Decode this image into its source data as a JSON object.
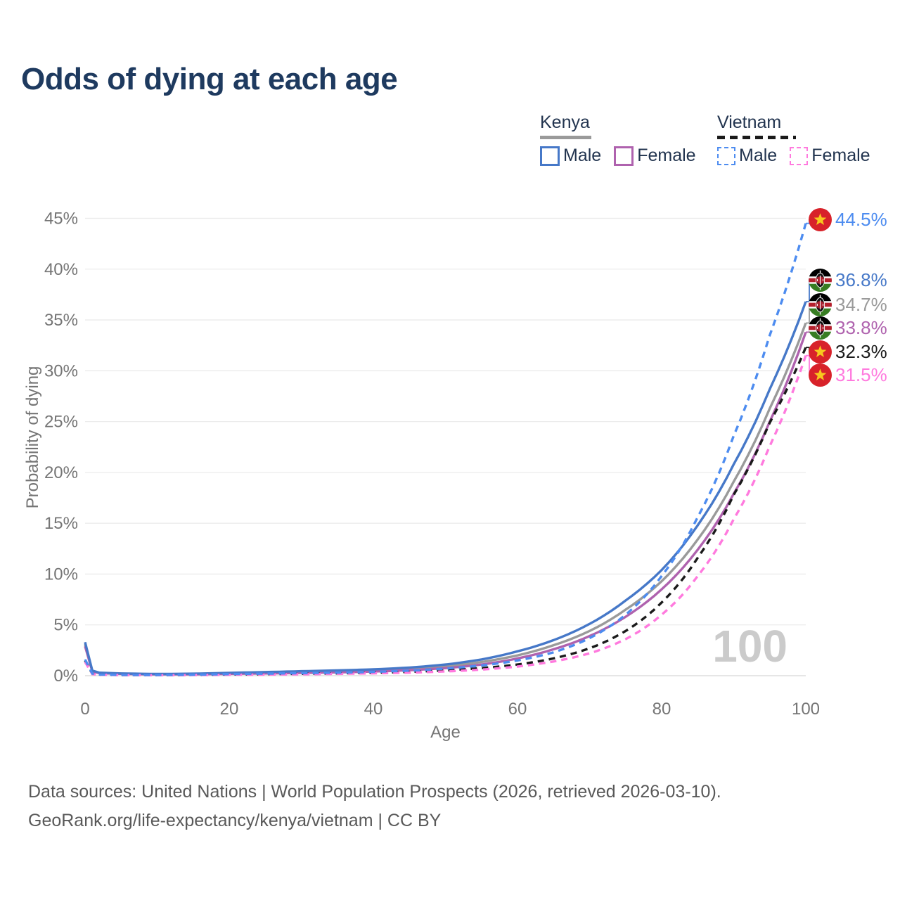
{
  "title": "Odds of dying at each age",
  "legend": {
    "groups": [
      {
        "country": "Kenya",
        "style": "solid",
        "items": [
          {
            "label": "Male"
          },
          {
            "label": "Female"
          }
        ]
      },
      {
        "country": "Vietnam",
        "style": "dashed",
        "items": [
          {
            "label": "Male"
          },
          {
            "label": "Female"
          }
        ]
      }
    ]
  },
  "chart_data": {
    "type": "line",
    "title": "Odds of dying at each age",
    "xlabel": "Age",
    "ylabel": "Probability of dying",
    "xlim": [
      0,
      100
    ],
    "ylim": [
      0,
      45
    ],
    "x_ticks": [
      0,
      20,
      40,
      60,
      80,
      100
    ],
    "y_tick_labels": [
      "0%",
      "5%",
      "10%",
      "15%",
      "20%",
      "25%",
      "30%",
      "35%",
      "40%",
      "45%"
    ],
    "grid": "horizontal",
    "watermark": "100",
    "ages": [
      0,
      1,
      2,
      5,
      10,
      15,
      20,
      25,
      30,
      35,
      40,
      45,
      50,
      55,
      60,
      65,
      70,
      75,
      80,
      85,
      90,
      95,
      100
    ],
    "series": [
      {
        "id": "kenya-male",
        "name": "Kenya Male",
        "country": "Kenya",
        "sex": "Male",
        "color": "#4678c8",
        "dash": false,
        "flag": "kenya",
        "values": [
          3.3,
          0.5,
          0.3,
          0.22,
          0.17,
          0.2,
          0.28,
          0.36,
          0.44,
          0.52,
          0.62,
          0.8,
          1.1,
          1.6,
          2.4,
          3.5,
          5.1,
          7.4,
          10.4,
          14.8,
          20.8,
          28.2,
          36.8
        ],
        "end_label": "36.8%"
      },
      {
        "id": "kenya-total",
        "name": "Kenya Both sexes",
        "country": "Kenya",
        "sex": "Both sexes",
        "color": "#9a9a9a",
        "dash": false,
        "flag": "kenya",
        "values": [
          3.1,
          0.46,
          0.27,
          0.2,
          0.15,
          0.17,
          0.23,
          0.29,
          0.36,
          0.43,
          0.52,
          0.67,
          0.92,
          1.35,
          2.0,
          3.0,
          4.4,
          6.5,
          9.3,
          13.4,
          19.1,
          26.3,
          34.7
        ],
        "end_label": "34.7%"
      },
      {
        "id": "kenya-female",
        "name": "Kenya Female",
        "country": "Kenya",
        "sex": "Female",
        "color": "#af62ae",
        "dash": false,
        "flag": "kenya",
        "values": [
          2.9,
          0.42,
          0.25,
          0.18,
          0.13,
          0.14,
          0.18,
          0.22,
          0.27,
          0.33,
          0.41,
          0.54,
          0.75,
          1.1,
          1.7,
          2.6,
          3.9,
          5.8,
          8.5,
          12.4,
          17.9,
          25.0,
          33.8
        ],
        "end_label": "33.8%"
      },
      {
        "id": "vietnam-male",
        "name": "Vietnam Male",
        "country": "Vietnam",
        "sex": "Male",
        "color": "#4d8cf0",
        "dash": true,
        "flag": "vietnam",
        "values": [
          1.6,
          0.2,
          0.12,
          0.08,
          0.07,
          0.1,
          0.16,
          0.2,
          0.25,
          0.3,
          0.38,
          0.5,
          0.7,
          1.0,
          1.5,
          2.3,
          3.7,
          6.0,
          9.8,
          15.6,
          23.6,
          33.5,
          44.5
        ],
        "end_label": "44.5%"
      },
      {
        "id": "vietnam-total",
        "name": "Vietnam Both sexes",
        "country": "Vietnam",
        "sex": "Both sexes",
        "color": "#1a1a1a",
        "dash": true,
        "flag": "vietnam",
        "values": [
          1.5,
          0.18,
          0.11,
          0.07,
          0.06,
          0.08,
          0.12,
          0.15,
          0.19,
          0.23,
          0.29,
          0.38,
          0.52,
          0.75,
          1.1,
          1.7,
          2.7,
          4.4,
          7.2,
          11.6,
          17.8,
          24.9,
          32.3
        ],
        "end_label": "32.3%"
      },
      {
        "id": "vietnam-female",
        "name": "Vietnam Female",
        "country": "Vietnam",
        "sex": "Female",
        "color": "#ff7ade",
        "dash": true,
        "flag": "vietnam",
        "values": [
          1.35,
          0.16,
          0.1,
          0.06,
          0.05,
          0.06,
          0.09,
          0.11,
          0.14,
          0.18,
          0.23,
          0.3,
          0.42,
          0.6,
          0.9,
          1.4,
          2.2,
          3.6,
          6.0,
          9.8,
          15.4,
          22.6,
          31.5
        ],
        "end_label": "31.5%"
      }
    ],
    "legend_position": "top-right"
  },
  "footer": {
    "line1": "Data sources: United Nations | World Population Prospects (2026, retrieved 2026-03-10).",
    "line2": "GeoRank.org/life-expectancy/kenya/vietnam | CC BY"
  }
}
